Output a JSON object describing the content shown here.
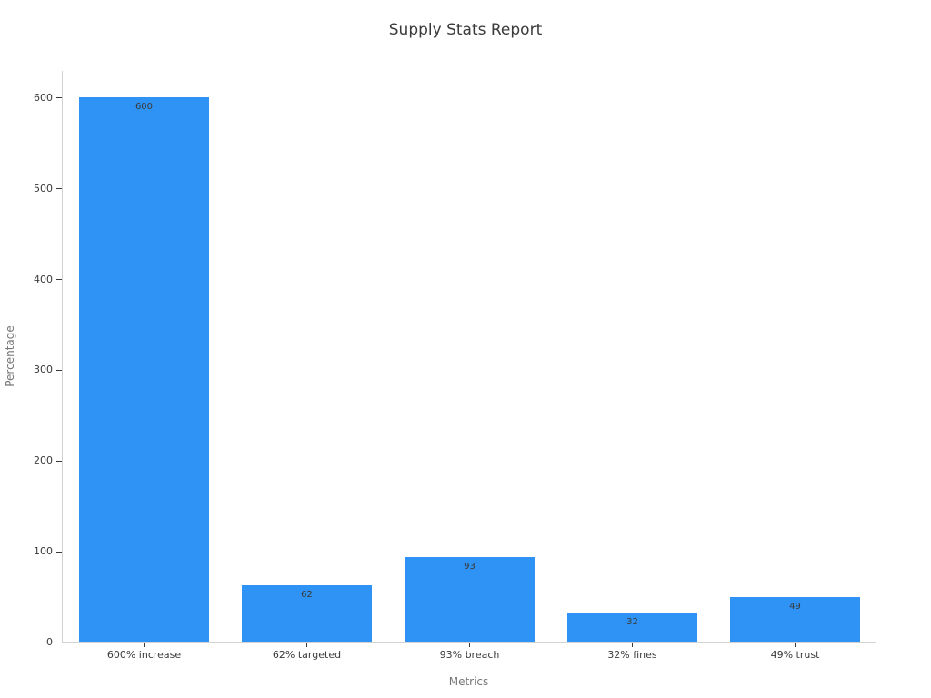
{
  "chart_data": {
    "type": "bar",
    "title": "Supply Stats Report",
    "xlabel": "Metrics",
    "ylabel": "Percentage",
    "categories": [
      "600% increase",
      "62% targeted",
      "93% breach",
      "32% fines",
      "49% trust"
    ],
    "values": [
      600,
      62,
      93,
      32,
      49
    ],
    "bar_value_labels": [
      "600",
      "62",
      "93",
      "32",
      "49"
    ],
    "yticks": [
      0,
      100,
      200,
      300,
      400,
      500,
      600
    ],
    "ylim": [
      0,
      630
    ],
    "bar_width_fraction": 0.8,
    "grid": false,
    "legend": "none",
    "bar_color": "#2e93f5"
  },
  "colors": {
    "title_text": "#3a3a3a",
    "axis_label": "#767676",
    "tick_label": "#3a3a3a",
    "spine": "#d2d2d2",
    "bar": "#2e93f5",
    "bar_label": "#3a3a3a",
    "background": "#ffffff"
  }
}
